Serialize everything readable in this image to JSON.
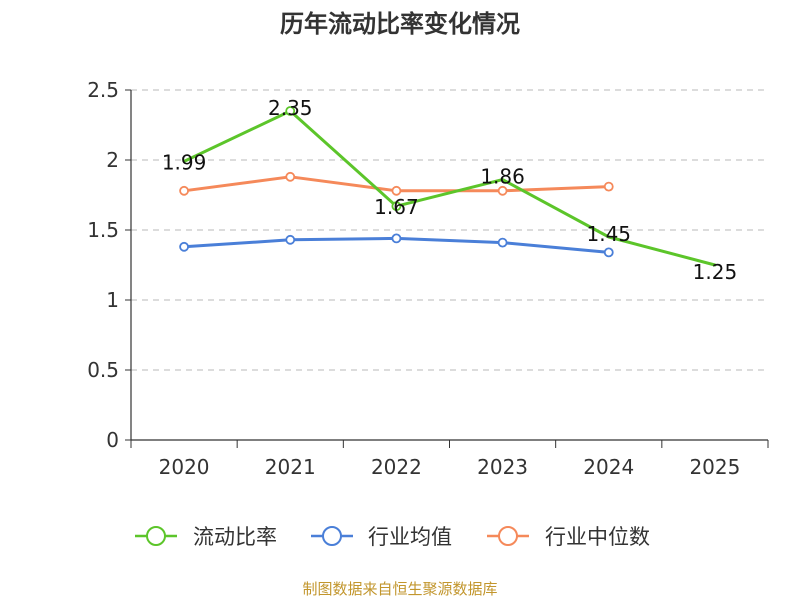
{
  "chart_data": {
    "type": "line",
    "title": "历年流动比率变化情况",
    "categories": [
      "2020",
      "2021",
      "2022",
      "2023",
      "2024",
      "2025"
    ],
    "ylim": [
      0,
      2.5
    ],
    "yticks": [
      0,
      0.5,
      1,
      1.5,
      2,
      2.5
    ],
    "ytick_labels": [
      "0",
      "0.5",
      "1",
      "1.5",
      "2",
      "2.5"
    ],
    "grid": true,
    "legend_position": "bottom",
    "series": [
      {
        "name": "流动比率",
        "color": "#5cc52a",
        "values": [
          1.99,
          2.35,
          1.67,
          1.86,
          1.45,
          1.25
        ],
        "labels": [
          "1.99",
          "2.35",
          "1.67",
          "1.86",
          "1.45",
          "1.25"
        ],
        "show_labels": true,
        "show_markers_at": [
          1,
          2
        ]
      },
      {
        "name": "行业均值",
        "color": "#4a7fd8",
        "values": [
          1.38,
          1.43,
          1.44,
          1.41,
          1.34,
          null
        ],
        "show_labels": false
      },
      {
        "name": "行业中位数",
        "color": "#f5895a",
        "values": [
          1.78,
          1.88,
          1.78,
          1.78,
          1.81,
          null
        ],
        "show_labels": false
      }
    ],
    "source": "制图数据来自恒生聚源数据库",
    "source_color": "#c2962d"
  }
}
